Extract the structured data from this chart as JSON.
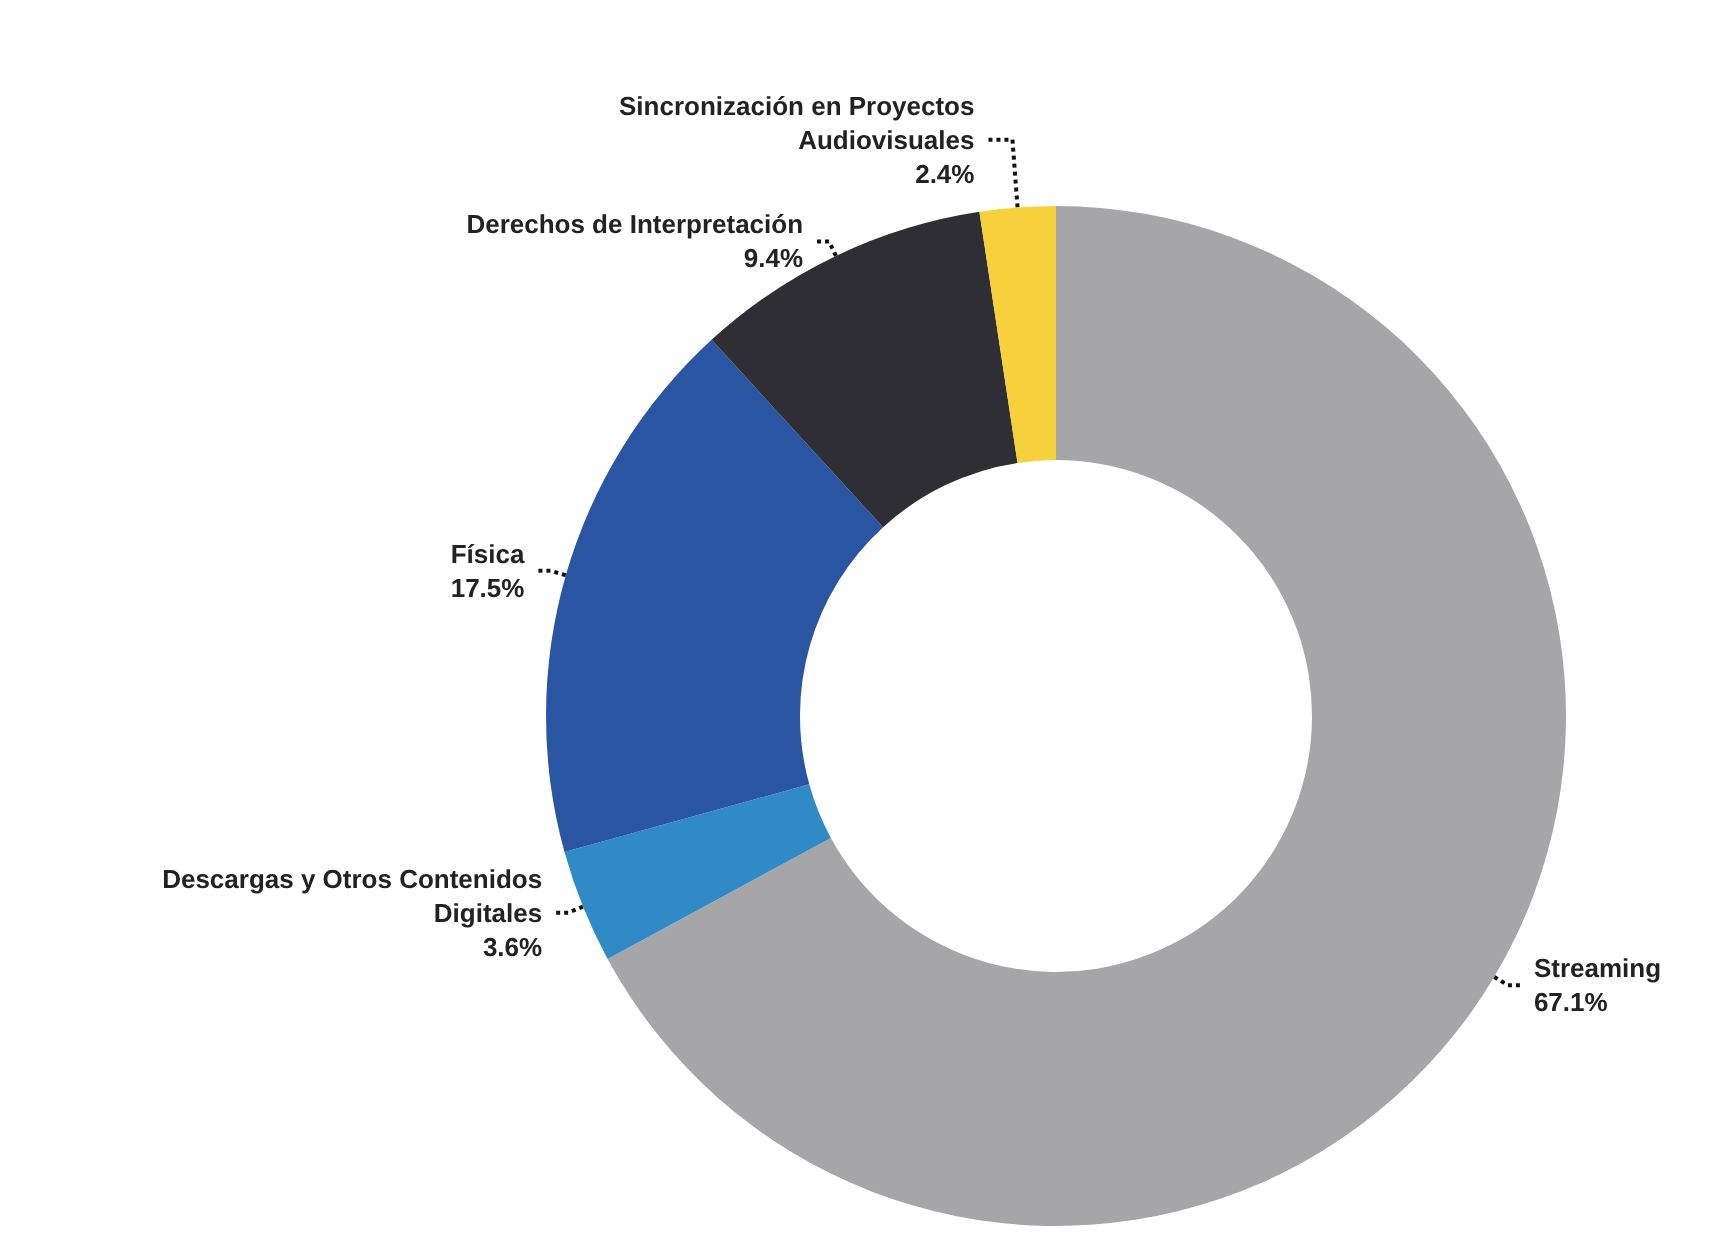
{
  "chart_data": {
    "type": "donut",
    "categories": [
      "Streaming",
      "Descargas y Otros Contenidos Digitales",
      "Física",
      "Derechos de Interpretación",
      "Sincronización en Proyectos Audiovisuales"
    ],
    "values": [
      67.1,
      3.6,
      17.5,
      9.4,
      2.4
    ],
    "value_labels": [
      "67.1%",
      "3.6%",
      "17.5%",
      "9.4%",
      "2.4%"
    ],
    "colors": [
      "#a6a6a8",
      "#2f8ac6",
      "#2a55a3",
      "#2e2e34",
      "#f6d13c"
    ],
    "legend": false
  }
}
